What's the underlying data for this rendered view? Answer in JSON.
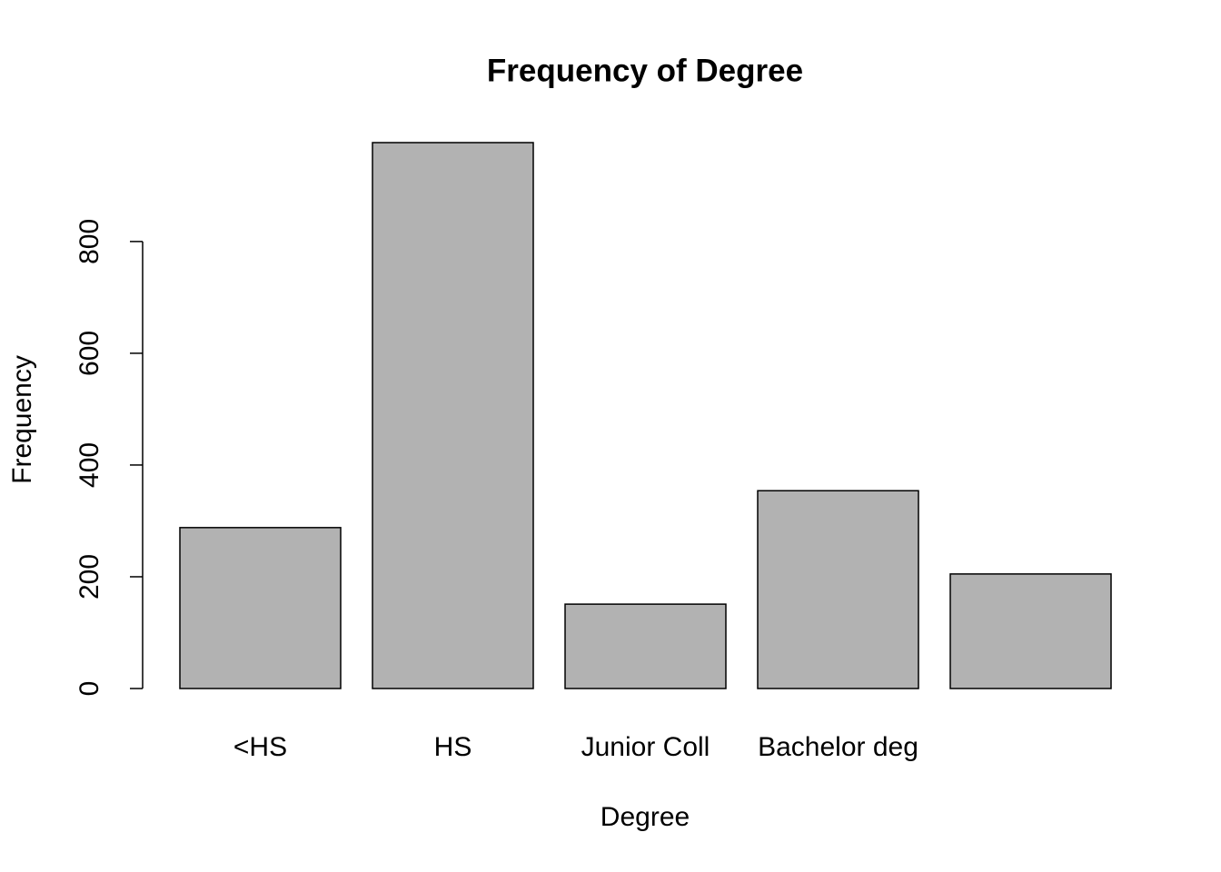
{
  "chart_data": {
    "type": "bar",
    "title": "Frequency of Degree",
    "x_label": "Degree",
    "y_label": "Frequency",
    "categories": [
      "<HS",
      "HS",
      "Junior Coll",
      "Bachelor deg",
      null
    ],
    "values": [
      288,
      977,
      151,
      354,
      205
    ],
    "color": "#b2b2b2",
    "ylim": [
      0,
      977
    ],
    "yticks": [
      0,
      200,
      400,
      600,
      800
    ],
    "grid": false
  }
}
